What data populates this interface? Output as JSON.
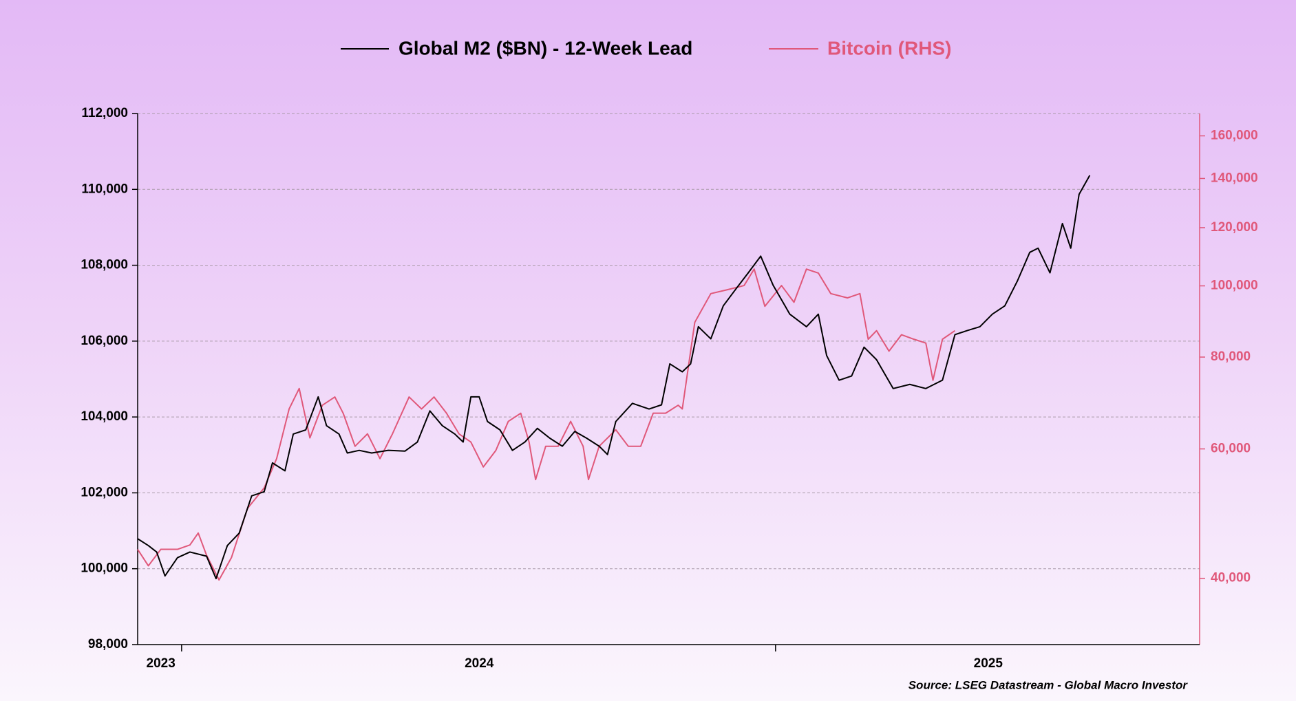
{
  "chart_data": {
    "type": "line",
    "source": "Source: LSEG Datastream - Global Macro Investor",
    "xlim": [
      2023.926,
      2025.714
    ],
    "xticks": [
      {
        "value": 2023.965,
        "label": "2023"
      },
      {
        "value": 2024.501,
        "label": "2024"
      },
      {
        "value": 2025.358,
        "label": "2025"
      }
    ],
    "xtick_marks": [
      2024,
      2025
    ],
    "ylim": [
      98000,
      112000
    ],
    "yticks": [
      {
        "value": 98000,
        "label": "98,000"
      },
      {
        "value": 100000,
        "label": "100,000"
      },
      {
        "value": 102000,
        "label": "102,000"
      },
      {
        "value": 104000,
        "label": "104,000"
      },
      {
        "value": 106000,
        "label": "106,000"
      },
      {
        "value": 108000,
        "label": "108,000"
      },
      {
        "value": 110000,
        "label": "110,000"
      },
      {
        "value": 112000,
        "label": "112,000"
      }
    ],
    "y2lim": [
      32500,
      171600
    ],
    "y2_scale": "log",
    "y2ticks": [
      {
        "value": 40000,
        "label": "40,000"
      },
      {
        "value": 60000,
        "label": "60,000"
      },
      {
        "value": 80000,
        "label": "80,000"
      },
      {
        "value": 100000,
        "label": "100,000"
      },
      {
        "value": 120000,
        "label": "120,000"
      },
      {
        "value": 140000,
        "label": "140,000"
      },
      {
        "value": 160000,
        "label": "160,000"
      }
    ],
    "grid": true,
    "series": [
      {
        "name": "Global M2 ($BN) - 12-Week Lead",
        "color": "#000000",
        "x": [
          2023.926,
          2023.944,
          2023.958,
          2023.972,
          2023.993,
          2024.014,
          2024.042,
          2024.058,
          2024.077,
          2024.097,
          2024.118,
          2024.139,
          2024.153,
          2024.174,
          2024.188,
          2024.209,
          2024.23,
          2024.244,
          2024.265,
          2024.279,
          2024.299,
          2024.32,
          2024.348,
          2024.376,
          2024.397,
          2024.418,
          2024.439,
          2024.46,
          2024.474,
          2024.487,
          2024.501,
          2024.515,
          2024.536,
          2024.557,
          2024.578,
          2024.599,
          2024.62,
          2024.641,
          2024.662,
          2024.682,
          2024.703,
          2024.717,
          2024.731,
          2024.759,
          2024.787,
          2024.808,
          2024.822,
          2024.843,
          2024.857,
          2024.87,
          2024.891,
          2024.912,
          2024.933,
          2024.954,
          2024.975,
          2024.996,
          2025.024,
          2025.052,
          2025.072,
          2025.086,
          2025.107,
          2025.128,
          2025.149,
          2025.17,
          2025.198,
          2025.226,
          2025.253,
          2025.281,
          2025.302,
          2025.323,
          2025.344,
          2025.365,
          2025.386,
          2025.407,
          2025.428,
          2025.442,
          2025.462,
          2025.483,
          2025.497,
          2025.511,
          2025.529
        ],
        "values": [
          100790,
          100610,
          100440,
          99810,
          100290,
          100440,
          100330,
          99740,
          100610,
          100940,
          101920,
          102030,
          102790,
          102580,
          103550,
          103660,
          104530,
          103770,
          103550,
          103050,
          103120,
          103050,
          103120,
          103100,
          103340,
          104160,
          103770,
          103550,
          103340,
          104530,
          104530,
          103880,
          103660,
          103120,
          103340,
          103700,
          103440,
          103230,
          103620,
          103440,
          103230,
          103010,
          103880,
          104360,
          104210,
          104320,
          105400,
          105190,
          105400,
          106380,
          106060,
          106930,
          107370,
          107800,
          108240,
          107470,
          106710,
          106380,
          106710,
          105620,
          104970,
          105080,
          105840,
          105510,
          104750,
          104860,
          104750,
          104970,
          106170,
          106280,
          106380,
          106710,
          106930,
          107580,
          108340,
          108450,
          107800,
          109100,
          108450,
          109870,
          110370
        ]
      },
      {
        "name": "Bitcoin (RHS)",
        "color": "#e0587a",
        "axis": "y2",
        "x": [
          2023.926,
          2023.944,
          2023.965,
          2023.993,
          2024.014,
          2024.028,
          2024.042,
          2024.063,
          2024.084,
          2024.111,
          2024.139,
          2024.16,
          2024.181,
          2024.198,
          2024.216,
          2024.237,
          2024.258,
          2024.272,
          2024.292,
          2024.313,
          2024.334,
          2024.355,
          2024.383,
          2024.404,
          2024.425,
          2024.446,
          2024.467,
          2024.487,
          2024.508,
          2024.529,
          2024.55,
          2024.571,
          2024.585,
          2024.596,
          2024.613,
          2024.634,
          2024.655,
          2024.676,
          2024.685,
          2024.703,
          2024.731,
          2024.752,
          2024.773,
          2024.794,
          2024.815,
          2024.836,
          2024.843,
          2024.864,
          2024.891,
          2024.919,
          2024.947,
          2024.964,
          2024.982,
          2025.01,
          2025.031,
          2025.052,
          2025.072,
          2025.093,
          2025.121,
          2025.142,
          2025.156,
          2025.17,
          2025.191,
          2025.212,
          2025.233,
          2025.253,
          2025.265,
          2025.281,
          2025.302
        ],
        "values": [
          43800,
          41600,
          43800,
          43800,
          44400,
          46100,
          43000,
          39800,
          42700,
          49800,
          53100,
          58200,
          68000,
          72500,
          62100,
          68800,
          70600,
          67100,
          60500,
          62900,
          58200,
          62900,
          70600,
          68000,
          70600,
          67100,
          62900,
          61300,
          56700,
          59700,
          65400,
          67100,
          61300,
          54500,
          60500,
          60500,
          65400,
          60500,
          54500,
          60500,
          63700,
          60500,
          60500,
          67100,
          67100,
          68800,
          68000,
          89200,
          97600,
          98800,
          100100,
          105400,
          93800,
          100100,
          95000,
          105400,
          104100,
          97600,
          96300,
          97600,
          84600,
          86900,
          81500,
          85800,
          84600,
          83600,
          74400,
          84600,
          86900
        ]
      }
    ]
  }
}
